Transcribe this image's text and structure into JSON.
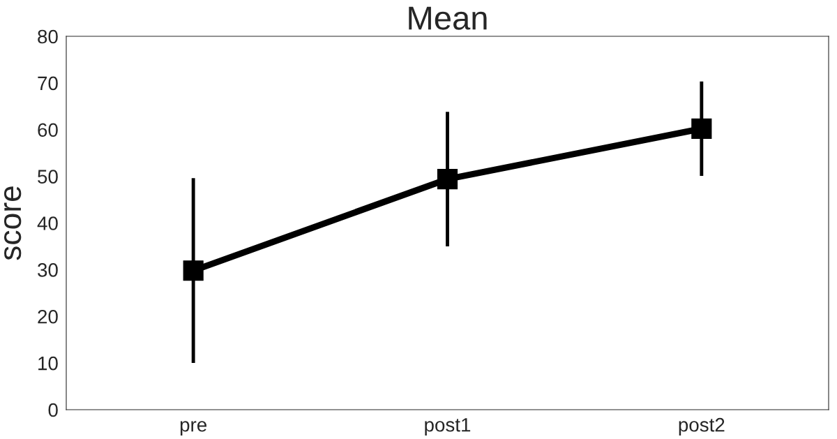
{
  "chart_data": {
    "type": "line",
    "title": "Mean",
    "ylabel": "score",
    "categories": [
      "pre",
      "post1",
      "post2"
    ],
    "series": [
      {
        "color": "#000000",
        "values": [
          29.8,
          49.4,
          60.2
        ],
        "errors": [
          [
            10,
            49.6
          ],
          [
            35,
            63.8
          ],
          [
            50.1,
            70.3
          ]
        ]
      }
    ],
    "ylim": [
      0,
      80
    ],
    "yticks": [
      0,
      10,
      20,
      30,
      40,
      50,
      60,
      70,
      80
    ],
    "marker": "square",
    "line_style": "solid",
    "grid": false,
    "legend": false
  }
}
